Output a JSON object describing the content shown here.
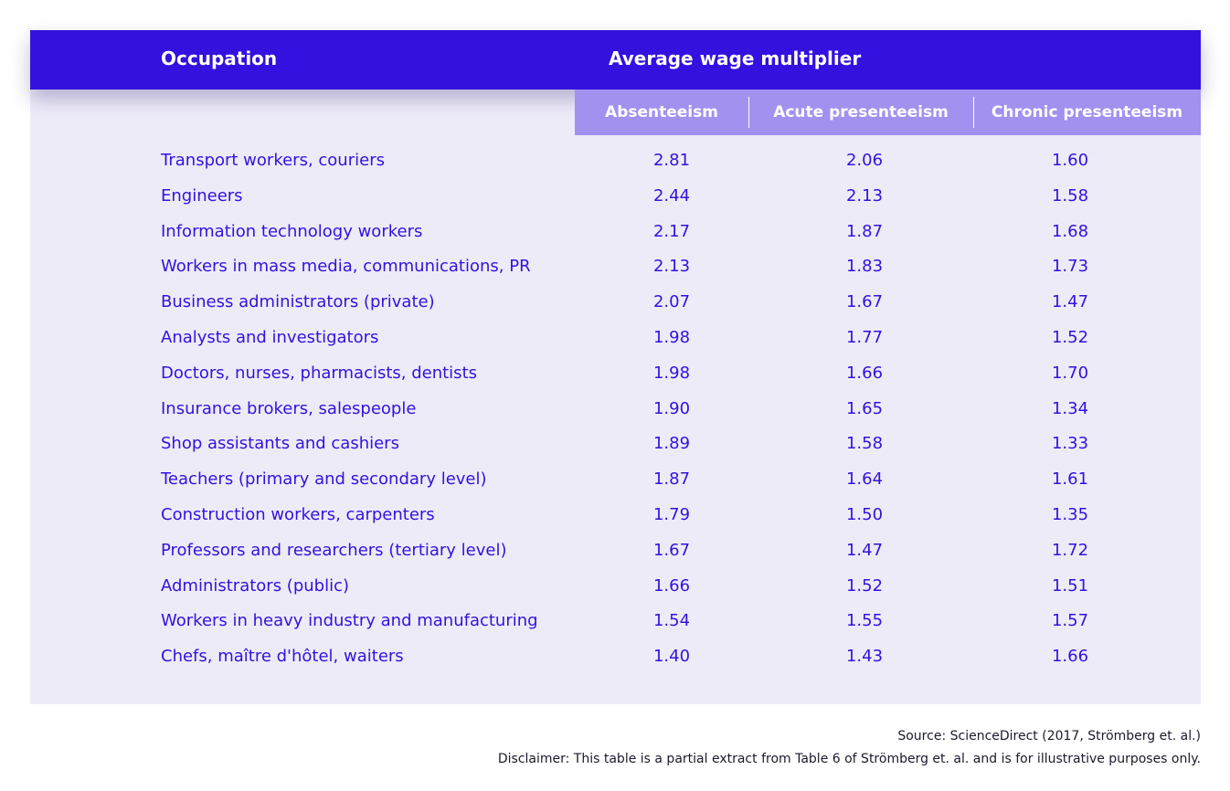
{
  "chart_data": {
    "type": "table",
    "header": {
      "occupation": "Occupation",
      "group": "Average wage multiplier"
    },
    "columns": [
      "Absenteeism",
      "Acute presenteeism",
      "Chronic presenteeism"
    ],
    "rows": [
      {
        "occupation": "Transport workers, couriers",
        "values": [
          "2.81",
          "2.06",
          "1.60"
        ]
      },
      {
        "occupation": "Engineers",
        "values": [
          "2.44",
          "2.13",
          "1.58"
        ]
      },
      {
        "occupation": "Information technology workers",
        "values": [
          "2.17",
          "1.87",
          "1.68"
        ]
      },
      {
        "occupation": "Workers in mass media, communications, PR",
        "values": [
          "2.13",
          "1.83",
          "1.73"
        ]
      },
      {
        "occupation": "Business administrators (private)",
        "values": [
          "2.07",
          "1.67",
          "1.47"
        ]
      },
      {
        "occupation": "Analysts and investigators",
        "values": [
          "1.98",
          "1.77",
          "1.52"
        ]
      },
      {
        "occupation": "Doctors, nurses, pharmacists, dentists",
        "values": [
          "1.98",
          "1.66",
          "1.70"
        ]
      },
      {
        "occupation": "Insurance brokers, salespeople",
        "values": [
          "1.90",
          "1.65",
          "1.34"
        ]
      },
      {
        "occupation": "Shop assistants and cashiers",
        "values": [
          "1.89",
          "1.58",
          "1.33"
        ]
      },
      {
        "occupation": "Teachers (primary and secondary level)",
        "values": [
          "1.87",
          "1.64",
          "1.61"
        ]
      },
      {
        "occupation": "Construction workers, carpenters",
        "values": [
          "1.79",
          "1.50",
          "1.35"
        ]
      },
      {
        "occupation": "Professors and researchers (tertiary level)",
        "values": [
          "1.67",
          "1.47",
          "1.72"
        ]
      },
      {
        "occupation": "Administrators (public)",
        "values": [
          "1.66",
          "1.52",
          "1.51"
        ]
      },
      {
        "occupation": "Workers in heavy industry and manufacturing",
        "values": [
          "1.54",
          "1.55",
          "1.57"
        ]
      },
      {
        "occupation": "Chefs, maître d'hôtel, waiters",
        "values": [
          "1.40",
          "1.43",
          "1.66"
        ]
      }
    ]
  },
  "footer": {
    "source": "Source: ScienceDirect (2017, Strömberg et. al.)",
    "disclaimer": "Disclaimer: This table is a partial extract from Table 6 of Strömberg et. al. and is for illustrative purposes only."
  },
  "colors": {
    "header_bg": "#3411de",
    "subheader_bg": "#a291ef",
    "table_bg": "#eeebf9",
    "row_text": "#3411de"
  }
}
